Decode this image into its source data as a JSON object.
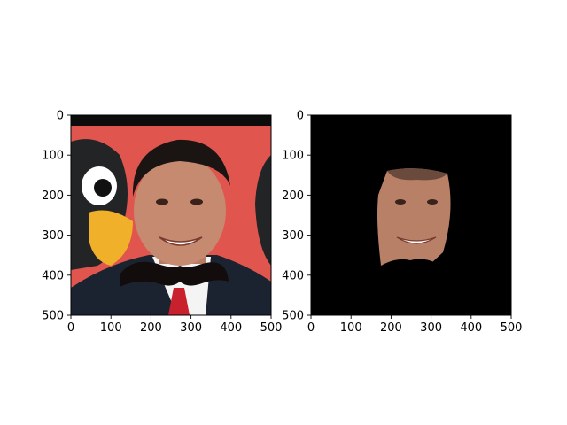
{
  "figure": {
    "background": "#ffffff"
  },
  "chart_data": [
    {
      "type": "image",
      "panel": "left",
      "content": "photo of smiling man in dark suit with red tie, red cartoon bird background, black mustache overlay",
      "xlim": [
        0,
        500
      ],
      "ylim": [
        500,
        0
      ],
      "x_ticks": [
        0,
        100,
        200,
        300,
        400,
        500
      ],
      "y_ticks": [
        0,
        100,
        200,
        300,
        400,
        500
      ],
      "x_tick_labels": [
        "0",
        "100",
        "200",
        "300",
        "400",
        "500"
      ],
      "y_tick_labels": [
        "0",
        "100",
        "200",
        "300",
        "400",
        "500"
      ],
      "colors": {
        "background": "#e0564f",
        "suit": "#1c2330",
        "skin": "#c58a70",
        "hair": "#1a1412",
        "tie": "#c8202c",
        "mustache": "#120d0c"
      }
    },
    {
      "type": "image",
      "panel": "right",
      "content": "masked face cutout on black background with mustache region removed",
      "xlim": [
        0,
        500
      ],
      "ylim": [
        500,
        0
      ],
      "x_ticks": [
        0,
        100,
        200,
        300,
        400,
        500
      ],
      "y_ticks": [
        0,
        100,
        200,
        300,
        400,
        500
      ],
      "x_tick_labels": [
        "0",
        "100",
        "200",
        "300",
        "400",
        "500"
      ],
      "y_tick_labels": [
        "0",
        "100",
        "200",
        "300",
        "400",
        "500"
      ],
      "colors": {
        "background": "#000000",
        "skin": "#b98068"
      }
    }
  ]
}
